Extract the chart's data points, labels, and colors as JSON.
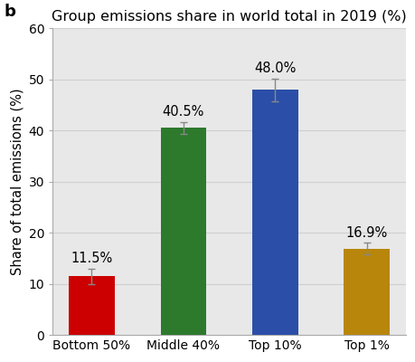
{
  "title": "Group emissions share in world total in 2019 (%)",
  "ylabel": "Share of total emissions (%)",
  "categories": [
    "Bottom 50%",
    "Middle 40%",
    "Top 10%",
    "Top 1%"
  ],
  "values": [
    11.5,
    40.5,
    48.0,
    16.9
  ],
  "errors": [
    1.5,
    1.2,
    2.2,
    1.2
  ],
  "bar_colors": [
    "#cc0000",
    "#2d7a2d",
    "#2b4fa8",
    "#b8860b"
  ],
  "label_texts": [
    "11.5%",
    "40.5%",
    "48.0%",
    "16.9%"
  ],
  "ylim": [
    0,
    60
  ],
  "yticks": [
    0,
    10,
    20,
    30,
    40,
    50,
    60
  ],
  "bg_color": "#e8e8e8",
  "label_fontsize": 10.5,
  "title_fontsize": 11.5,
  "ylabel_fontsize": 10.5,
  "tick_fontsize": 10,
  "panel_label": "b",
  "panel_label_fontsize": 13,
  "bar_width": 0.5,
  "grid_color": "#d0d0d0",
  "error_color": "#888888",
  "spine_color": "#aaaaaa"
}
